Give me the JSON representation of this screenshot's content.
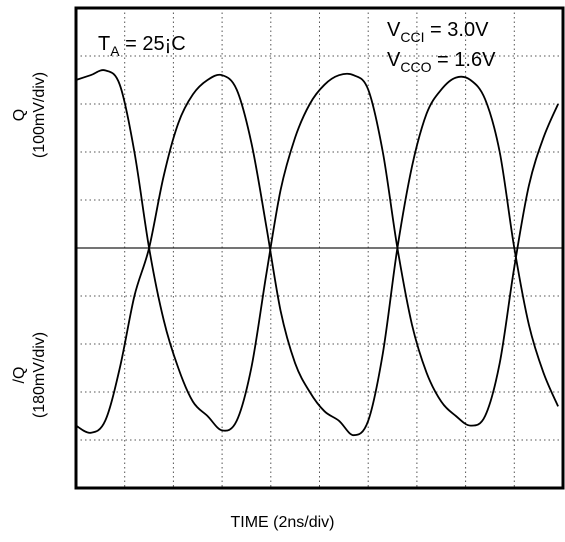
{
  "chart_data": {
    "type": "line",
    "title": "",
    "xlabel": "TIME (2ns/div)",
    "ylabel_top": [
      "Q",
      "(100mV/div)"
    ],
    "ylabel_bottom": [
      "/Q",
      "(180mV/div)"
    ],
    "annotations": {
      "temperature": {
        "main": "T",
        "sub": "A",
        "rest": " = 25¡C"
      },
      "vcci": {
        "main": "V",
        "sub": "CCI",
        "rest": " = 3.0V"
      },
      "vcco": {
        "main": "V",
        "sub": "CCO",
        "rest": " = 1.6V"
      }
    },
    "grid": true,
    "x_divisions": 10,
    "y_divisions": 10,
    "xlim_div": [
      0,
      10
    ],
    "ylim_div": [
      -5,
      5
    ],
    "series": [
      {
        "x": [
          0,
          0.3,
          0.6,
          0.9,
          1.2,
          1.5,
          1.8,
          2.1,
          2.4,
          2.7,
          3.0,
          3.3,
          3.6,
          3.9,
          4.2,
          4.5,
          4.8,
          5.1,
          5.4,
          5.7,
          6.0,
          6.3,
          6.6,
          6.9,
          7.2,
          7.5,
          7.8,
          8.1,
          8.4,
          8.7,
          9.0,
          9.3,
          9.6,
          9.9
        ],
        "y": [
          3.5,
          3.6,
          3.7,
          3.4,
          2.0,
          0.0,
          -1.5,
          -2.5,
          -3.2,
          -3.5,
          -3.8,
          -3.6,
          -2.5,
          -0.6,
          1.2,
          2.3,
          3.0,
          3.4,
          3.6,
          3.6,
          3.3,
          2.0,
          0.0,
          -1.6,
          -2.6,
          -3.2,
          -3.5,
          -3.7,
          -3.5,
          -2.4,
          -0.4,
          1.3,
          2.3,
          3.0
        ]
      },
      {
        "x": [
          0,
          0.3,
          0.6,
          0.9,
          1.2,
          1.5,
          1.8,
          2.1,
          2.4,
          2.7,
          3.0,
          3.3,
          3.6,
          3.9,
          4.2,
          4.5,
          4.8,
          5.1,
          5.4,
          5.7,
          6.0,
          6.3,
          6.6,
          6.9,
          7.2,
          7.5,
          7.8,
          8.1,
          8.4,
          8.7,
          9.0,
          9.3,
          9.6,
          9.9
        ],
        "y": [
          -3.7,
          -3.85,
          -3.6,
          -2.5,
          -1.0,
          0.0,
          1.5,
          2.6,
          3.2,
          3.5,
          3.6,
          3.3,
          2.2,
          0.5,
          -1.3,
          -2.4,
          -3.0,
          -3.4,
          -3.6,
          -3.9,
          -3.6,
          -2.2,
          0.0,
          1.7,
          2.8,
          3.3,
          3.55,
          3.5,
          3.1,
          2.0,
          0.0,
          -1.6,
          -2.6,
          -3.3
        ]
      }
    ]
  }
}
